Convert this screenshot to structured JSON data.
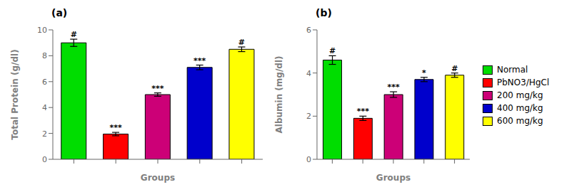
{
  "chart_data": [
    {
      "type": "bar",
      "title": "(a)",
      "xlabel": "Groups",
      "ylabel": "Total Protein (g/dl)",
      "categories": [
        "Normal",
        "PbNO3/HgCl",
        "200 mg/kg",
        "400 mg/kg",
        "600 mg/kg"
      ],
      "values": [
        9.0,
        1.95,
        5.0,
        7.1,
        8.5
      ],
      "errors": [
        0.28,
        0.13,
        0.13,
        0.18,
        0.18
      ],
      "colors": [
        "#00dd00",
        "#ff0000",
        "#cc0077",
        "#0000cc",
        "#ffff00"
      ],
      "annotations": [
        "#",
        "***",
        "***",
        "***",
        "#"
      ],
      "ylim": [
        0,
        10
      ],
      "yticks": [
        0,
        2,
        4,
        6,
        8,
        10
      ],
      "tick_labels": "y"
    },
    {
      "type": "bar",
      "title": "(b)",
      "xlabel": "Groups",
      "ylabel": "Albumin (mg/dl)",
      "categories": [
        "Normal",
        "PbNO3/HgCl",
        "200 mg/kg",
        "400 mg/kg",
        "600 mg/kg"
      ],
      "values": [
        4.6,
        1.9,
        3.0,
        3.7,
        3.9
      ],
      "errors": [
        0.2,
        0.1,
        0.13,
        0.1,
        0.1
      ],
      "colors": [
        "#00dd00",
        "#ff0000",
        "#cc0077",
        "#0000cc",
        "#ffff00"
      ],
      "annotations": [
        "#",
        "***",
        "***",
        "*",
        "#"
      ],
      "ylim": [
        0,
        6
      ],
      "yticks": [
        0,
        2,
        4,
        6
      ],
      "tick_labels": "y",
      "legend": "right"
    }
  ]
}
